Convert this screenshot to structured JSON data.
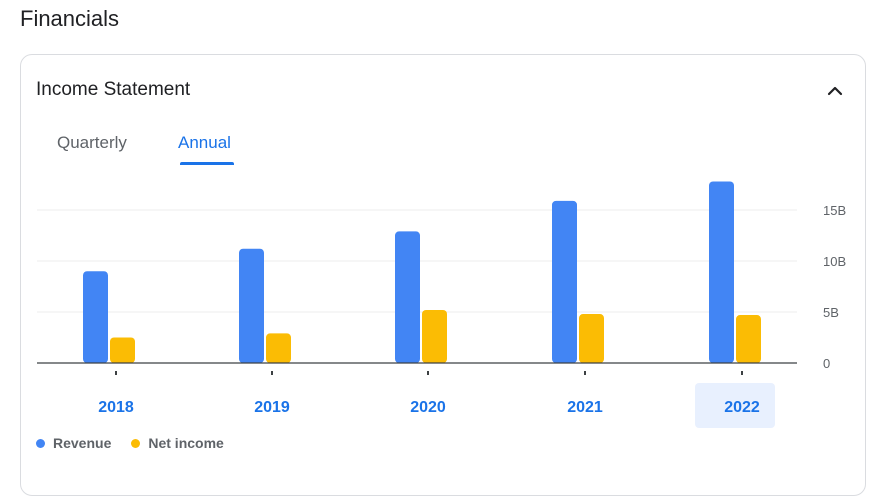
{
  "section_title": "Financials",
  "card": {
    "title": "Income Statement",
    "collapse_icon": "chevron-up-icon"
  },
  "tabs": [
    {
      "label": "Quarterly",
      "active": false
    },
    {
      "label": "Annual",
      "active": true
    }
  ],
  "colors": {
    "revenue": "#4285f4",
    "net_income": "#fbbc04",
    "accent": "#1a73e8",
    "selected_bg": "#e8f0fe"
  },
  "selected_year": "2022",
  "chart_data": {
    "type": "bar",
    "categories": [
      "2018",
      "2019",
      "2020",
      "2021",
      "2022"
    ],
    "series": [
      {
        "name": "Revenue",
        "values": [
          9.0,
          11.2,
          12.9,
          15.9,
          17.8
        ]
      },
      {
        "name": "Net income",
        "values": [
          2.5,
          2.9,
          5.2,
          4.8,
          4.7
        ]
      }
    ],
    "y_ticks": [
      "0",
      "5B",
      "10B",
      "15B"
    ],
    "y_tick_values": [
      0,
      5,
      10,
      15
    ],
    "ylim": [
      0,
      18
    ],
    "unit": "B",
    "grid": true,
    "legend": "bottom-left"
  }
}
